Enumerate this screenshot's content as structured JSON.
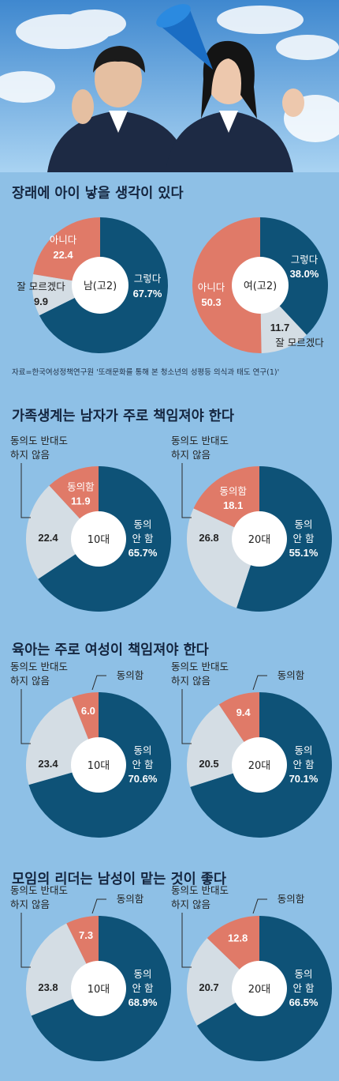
{
  "colors": {
    "navy": "#0e5277",
    "salmon": "#e07a68",
    "gray": "#d4dde4",
    "background": "#8ec0e6"
  },
  "chart_data": [
    {
      "type": "pie",
      "title": "장래에 아이 낳을 생각이 있다",
      "source": "자료=한국여성정책연구원 '또래문화를 통해 본 청소년의 성평등 의식과 태도 연구(1)'",
      "charts": [
        {
          "center_label": "남(고2)",
          "slices": [
            {
              "label": "그렇다",
              "value": 67.7,
              "display": "67.7%"
            },
            {
              "label": "잘 모르겠다",
              "value": 9.9,
              "display": "9.9"
            },
            {
              "label": "아니다",
              "value": 22.4,
              "display": "22.4"
            }
          ]
        },
        {
          "center_label": "여(고2)",
          "slices": [
            {
              "label": "그렇다",
              "value": 38.0,
              "display": "38.0%"
            },
            {
              "label": "잘 모르겠다",
              "value": 11.7,
              "display": "11.7"
            },
            {
              "label": "아니다",
              "value": 50.3,
              "display": "50.3"
            }
          ]
        }
      ]
    },
    {
      "type": "pie",
      "title": "가족생계는 남자가 주로 책임져야 한다",
      "charts": [
        {
          "center_label": "10대",
          "slices": [
            {
              "label": "동의\n안 함",
              "value": 65.7,
              "display": "65.7%"
            },
            {
              "label": "동의도 반대도\n하지 않음",
              "value": 22.4,
              "display": "22.4"
            },
            {
              "label": "동의함",
              "value": 11.9,
              "display": "11.9"
            }
          ]
        },
        {
          "center_label": "20대",
          "slices": [
            {
              "label": "동의\n안 함",
              "value": 55.1,
              "display": "55.1%"
            },
            {
              "label": "동의도 반대도\n하지 않음",
              "value": 26.8,
              "display": "26.8"
            },
            {
              "label": "동의함",
              "value": 18.1,
              "display": "18.1"
            }
          ]
        }
      ]
    },
    {
      "type": "pie",
      "title": "육아는 주로 여성이 책임져야 한다",
      "charts": [
        {
          "center_label": "10대",
          "slices": [
            {
              "label": "동의\n안 함",
              "value": 70.6,
              "display": "70.6%"
            },
            {
              "label": "동의도 반대도\n하지 않음",
              "value": 23.4,
              "display": "23.4"
            },
            {
              "label": "동의함",
              "value": 6.0,
              "display": "6.0"
            }
          ]
        },
        {
          "center_label": "20대",
          "slices": [
            {
              "label": "동의\n안 함",
              "value": 70.1,
              "display": "70.1%"
            },
            {
              "label": "동의도 반대도\n하지 않음",
              "value": 20.5,
              "display": "20.5"
            },
            {
              "label": "동의함",
              "value": 9.4,
              "display": "9.4"
            }
          ]
        }
      ]
    },
    {
      "type": "pie",
      "title": "모임의 리더는 남성이 맡는 것이 좋다",
      "charts": [
        {
          "center_label": "10대",
          "slices": [
            {
              "label": "동의\n안 함",
              "value": 68.9,
              "display": "68.9%"
            },
            {
              "label": "동의도 반대도\n하지 않음",
              "value": 23.8,
              "display": "23.8"
            },
            {
              "label": "동의함",
              "value": 7.3,
              "display": "7.3"
            }
          ]
        },
        {
          "center_label": "20대",
          "slices": [
            {
              "label": "동의\n안 함",
              "value": 66.5,
              "display": "66.5%"
            },
            {
              "label": "동의도 반대도\n하지 않음",
              "value": 20.7,
              "display": "20.7"
            },
            {
              "label": "동의함",
              "value": 12.8,
              "display": "12.8"
            }
          ]
        }
      ]
    }
  ]
}
